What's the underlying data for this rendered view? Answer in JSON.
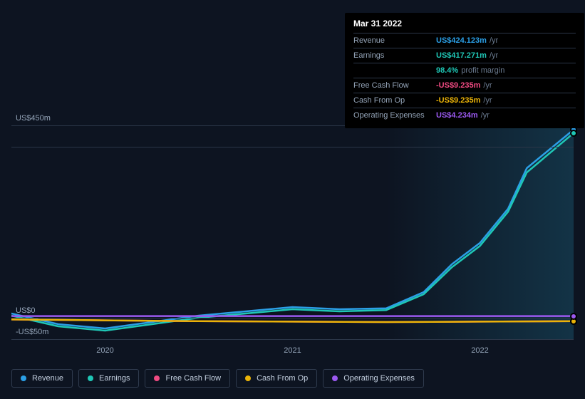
{
  "chart": {
    "type": "line",
    "background_color": "#0d1421",
    "grid_color": "#2b3648",
    "text_color": "#94a4b8",
    "y_axis": {
      "min": -50,
      "max": 450,
      "ticks": [
        {
          "value": 450,
          "label": "US$450m"
        },
        {
          "value": 400,
          "label": ""
        },
        {
          "value": 0,
          "label": "US$0"
        },
        {
          "value": -50,
          "label": "-US$50m"
        }
      ]
    },
    "x_axis": {
      "min": 2019.5,
      "max": 2022.5,
      "labels": [
        {
          "value": 2020,
          "label": "2020"
        },
        {
          "value": 2021,
          "label": "2021"
        },
        {
          "value": 2022,
          "label": "2022"
        }
      ]
    },
    "shaded_from_x": 2021.5,
    "series": [
      {
        "name": "Revenue",
        "color": "#2b9fe6",
        "points": [
          {
            "x": 2019.5,
            "y": 10
          },
          {
            "x": 2019.75,
            "y": -15
          },
          {
            "x": 2020.0,
            "y": -25
          },
          {
            "x": 2020.25,
            "y": -10
          },
          {
            "x": 2020.5,
            "y": 5
          },
          {
            "x": 2020.75,
            "y": 15
          },
          {
            "x": 2021.0,
            "y": 25
          },
          {
            "x": 2021.25,
            "y": 20
          },
          {
            "x": 2021.5,
            "y": 22
          },
          {
            "x": 2021.7,
            "y": 60
          },
          {
            "x": 2021.85,
            "y": 125
          },
          {
            "x": 2022.0,
            "y": 175
          },
          {
            "x": 2022.15,
            "y": 255
          },
          {
            "x": 2022.25,
            "y": 350
          },
          {
            "x": 2022.5,
            "y": 440
          }
        ]
      },
      {
        "name": "Earnings",
        "color": "#1fc7b6",
        "points": [
          {
            "x": 2019.5,
            "y": 5
          },
          {
            "x": 2019.75,
            "y": -20
          },
          {
            "x": 2020.0,
            "y": -30
          },
          {
            "x": 2020.25,
            "y": -15
          },
          {
            "x": 2020.5,
            "y": 0
          },
          {
            "x": 2020.75,
            "y": 10
          },
          {
            "x": 2021.0,
            "y": 20
          },
          {
            "x": 2021.25,
            "y": 15
          },
          {
            "x": 2021.5,
            "y": 18
          },
          {
            "x": 2021.7,
            "y": 55
          },
          {
            "x": 2021.85,
            "y": 118
          },
          {
            "x": 2022.0,
            "y": 168
          },
          {
            "x": 2022.15,
            "y": 248
          },
          {
            "x": 2022.25,
            "y": 340
          },
          {
            "x": 2022.5,
            "y": 432
          }
        ]
      },
      {
        "name": "Free Cash Flow",
        "color": "#ef4a81",
        "points": [
          {
            "x": 2019.5,
            "y": -4
          },
          {
            "x": 2020.0,
            "y": -6
          },
          {
            "x": 2020.5,
            "y": -8
          },
          {
            "x": 2021.0,
            "y": -9
          },
          {
            "x": 2021.5,
            "y": -10
          },
          {
            "x": 2022.0,
            "y": -9
          },
          {
            "x": 2022.5,
            "y": -8
          }
        ]
      },
      {
        "name": "Cash From Op",
        "color": "#eab308",
        "points": [
          {
            "x": 2019.5,
            "y": -4
          },
          {
            "x": 2020.0,
            "y": -6
          },
          {
            "x": 2020.5,
            "y": -8
          },
          {
            "x": 2021.0,
            "y": -9
          },
          {
            "x": 2021.5,
            "y": -10
          },
          {
            "x": 2022.0,
            "y": -9
          },
          {
            "x": 2022.5,
            "y": -8
          }
        ]
      },
      {
        "name": "Operating Expenses",
        "color": "#9b59f0",
        "points": [
          {
            "x": 2019.5,
            "y": 4
          },
          {
            "x": 2020.0,
            "y": 4
          },
          {
            "x": 2020.5,
            "y": 4
          },
          {
            "x": 2021.0,
            "y": 4
          },
          {
            "x": 2021.5,
            "y": 4
          },
          {
            "x": 2022.0,
            "y": 4
          },
          {
            "x": 2022.5,
            "y": 4
          }
        ]
      }
    ],
    "line_width": 2.5
  },
  "legend": {
    "items": [
      {
        "label": "Revenue",
        "color": "#2b9fe6"
      },
      {
        "label": "Earnings",
        "color": "#1fc7b6"
      },
      {
        "label": "Free Cash Flow",
        "color": "#ef4a81"
      },
      {
        "label": "Cash From Op",
        "color": "#eab308"
      },
      {
        "label": "Operating Expenses",
        "color": "#9b59f0"
      }
    ]
  },
  "tooltip": {
    "date": "Mar 31 2022",
    "rows": [
      {
        "label": "Revenue",
        "value": "US$424.123m",
        "unit": "/yr",
        "color": "#2b9fe6"
      },
      {
        "label": "Earnings",
        "value": "US$417.271m",
        "unit": "/yr",
        "color": "#1fc7b6"
      },
      {
        "label": "",
        "value": "98.4%",
        "unit": "profit margin",
        "color": "#1fc7b6"
      },
      {
        "label": "Free Cash Flow",
        "value": "-US$9.235m",
        "unit": "/yr",
        "color": "#ef4a81"
      },
      {
        "label": "Cash From Op",
        "value": "-US$9.235m",
        "unit": "/yr",
        "color": "#eab308"
      },
      {
        "label": "Operating Expenses",
        "value": "US$4.234m",
        "unit": "/yr",
        "color": "#9b59f0"
      }
    ]
  },
  "marker_x": 2022.5
}
